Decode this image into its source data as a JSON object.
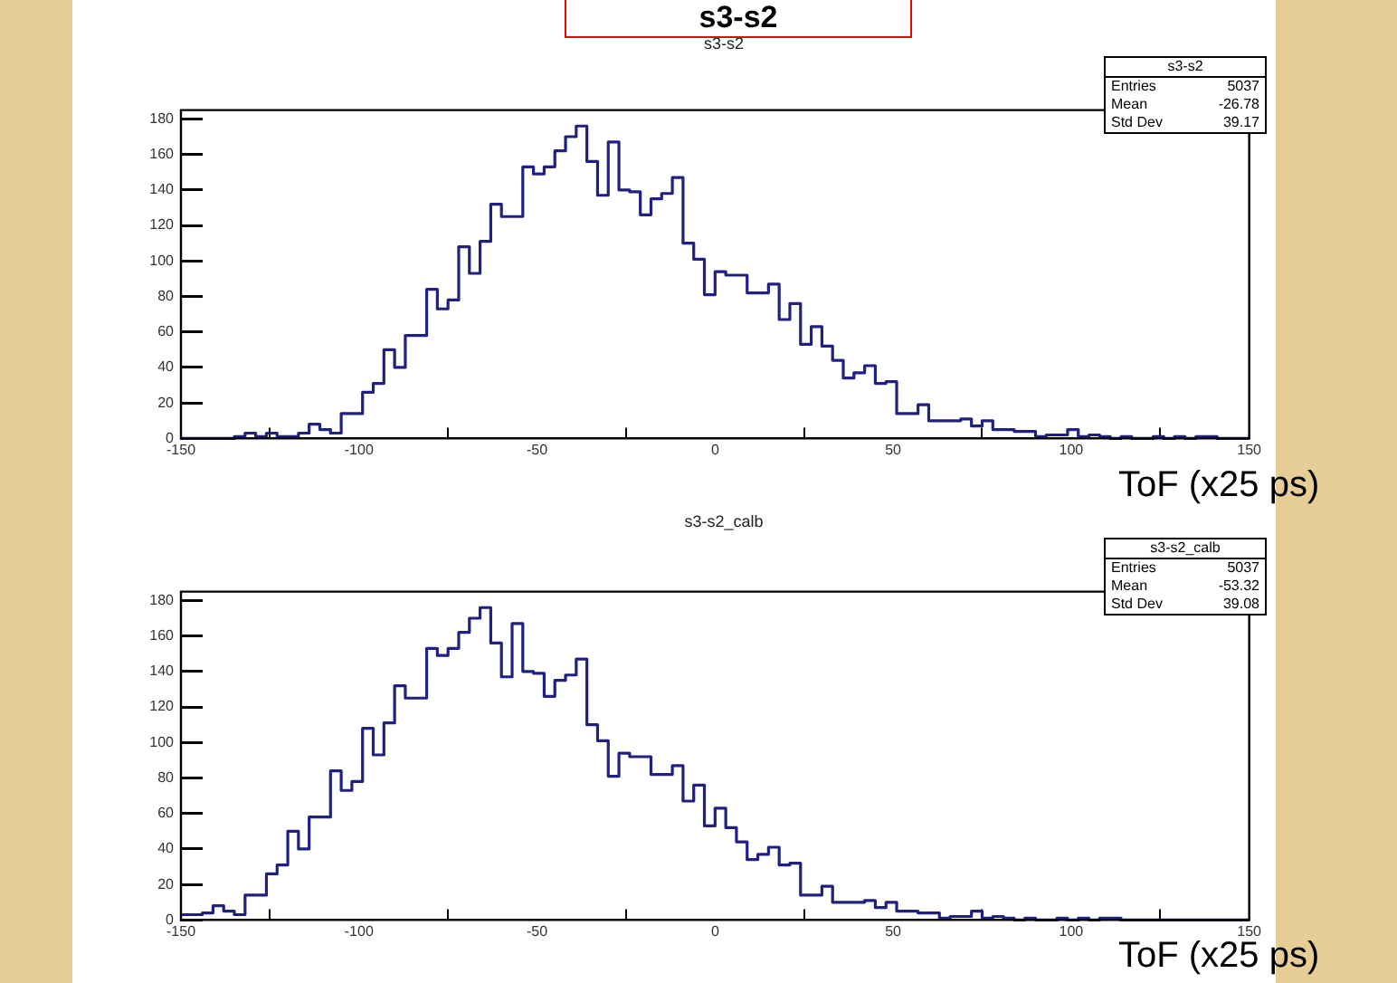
{
  "chart_data": [
    {
      "type": "histogram",
      "title": "s3-s2",
      "xlabel": "ToF (x25 ps)",
      "color": "#202080",
      "bins": [
        -150,
        -147,
        -144,
        -141,
        -138,
        -135,
        -132,
        -129,
        -126,
        -123,
        -120,
        -117,
        -114,
        -111,
        -108,
        -105,
        -102,
        -99,
        -96,
        -93,
        -90,
        -87,
        -84,
        -81,
        -78,
        -75,
        -72,
        -69,
        -66,
        -63,
        -60,
        -57,
        -54,
        -51,
        -48,
        -45,
        -42,
        -39,
        -36,
        -33,
        -30,
        -27,
        -24,
        -21,
        -18,
        -15,
        -12,
        -9,
        -6,
        -3,
        0,
        3,
        6,
        9,
        12,
        15,
        18,
        21,
        24,
        27,
        30,
        33,
        36,
        39,
        42,
        45,
        48,
        51,
        54,
        57,
        60,
        63,
        66,
        69,
        72,
        75,
        78,
        81,
        84,
        87,
        90,
        93,
        96,
        99,
        102,
        105,
        108,
        111,
        114,
        117,
        120,
        123,
        126,
        129,
        132,
        135,
        138,
        141,
        144,
        147,
        150
      ],
      "values": [
        0,
        0,
        0,
        0,
        0,
        1,
        3,
        1,
        3,
        1,
        1,
        3,
        8,
        5,
        3,
        14,
        14,
        26,
        31,
        50,
        40,
        58,
        58,
        84,
        73,
        78,
        108,
        93,
        111,
        132,
        125,
        125,
        153,
        149,
        153,
        162,
        170,
        176,
        156,
        137,
        167,
        140,
        139,
        126,
        135,
        138,
        147,
        110,
        101,
        81,
        94,
        92,
        92,
        82,
        82,
        87,
        67,
        76,
        53,
        63,
        52,
        44,
        34,
        37,
        41,
        31,
        32,
        14,
        14,
        19,
        10,
        10,
        10,
        11,
        7,
        10,
        5,
        5,
        4,
        4,
        1,
        2,
        2,
        5,
        1,
        2,
        1,
        0,
        1,
        0,
        0,
        1,
        0,
        1,
        0,
        1,
        1,
        0,
        0,
        0
      ],
      "xlim": [
        -150,
        150
      ],
      "xticks": [
        -150,
        -100,
        -50,
        0,
        50,
        100,
        150
      ],
      "ylim": [
        0,
        185
      ],
      "yticks": [
        0,
        20,
        40,
        60,
        80,
        100,
        120,
        140,
        160,
        180
      ],
      "annotations": [
        "s3-s2",
        "Entries",
        "5037",
        "Mean",
        "-26.78",
        "Std Dev",
        "39.17",
        "s3-s2"
      ]
    },
    {
      "type": "histogram",
      "title": "s3-s2_calb",
      "xlabel": "ToF (x25 ps)",
      "color": "#202080",
      "bins": [
        -150,
        -147,
        -144,
        -141,
        -138,
        -135,
        -132,
        -129,
        -126,
        -123,
        -120,
        -117,
        -114,
        -111,
        -108,
        -105,
        -102,
        -99,
        -96,
        -93,
        -90,
        -87,
        -84,
        -81,
        -78,
        -75,
        -72,
        -69,
        -66,
        -63,
        -60,
        -57,
        -54,
        -51,
        -48,
        -45,
        -42,
        -39,
        -36,
        -33,
        -30,
        -27,
        -24,
        -21,
        -18,
        -15,
        -12,
        -9,
        -6,
        -3,
        0,
        3,
        6,
        9,
        12,
        15,
        18,
        21,
        24,
        27,
        30,
        33,
        36,
        39,
        42,
        45,
        48,
        51,
        54,
        57,
        60,
        63,
        66,
        69,
        72,
        75,
        78,
        81,
        84,
        87,
        90,
        93,
        96,
        99,
        102,
        105,
        108,
        111,
        114,
        117,
        120,
        123,
        126,
        129,
        132,
        135,
        138,
        141,
        144,
        147,
        150
      ],
      "values": [
        3,
        3,
        4,
        8,
        5,
        3,
        14,
        14,
        26,
        31,
        50,
        40,
        58,
        58,
        84,
        73,
        78,
        108,
        93,
        111,
        132,
        125,
        125,
        153,
        149,
        153,
        162,
        170,
        176,
        156,
        137,
        167,
        140,
        139,
        126,
        135,
        138,
        147,
        110,
        101,
        81,
        94,
        92,
        92,
        82,
        82,
        87,
        67,
        76,
        53,
        63,
        52,
        44,
        34,
        37,
        41,
        31,
        32,
        14,
        14,
        19,
        10,
        10,
        10,
        11,
        7,
        10,
        5,
        5,
        4,
        4,
        1,
        2,
        2,
        5,
        1,
        2,
        1,
        0,
        1,
        0,
        0,
        1,
        0,
        1,
        0,
        1,
        1,
        0,
        0,
        0,
        0,
        0,
        0,
        0,
        0,
        0,
        0,
        0,
        0
      ],
      "xlim": [
        -150,
        150
      ],
      "xticks": [
        -150,
        -100,
        -50,
        0,
        50,
        100,
        150
      ],
      "ylim": [
        0,
        185
      ],
      "yticks": [
        0,
        20,
        40,
        60,
        80,
        100,
        120,
        140,
        160,
        180
      ],
      "annotations": [
        "s3-s2_calb",
        "Entries",
        "5037",
        "Mean",
        "-53.32",
        "Std Dev",
        "39.08"
      ]
    }
  ]
}
